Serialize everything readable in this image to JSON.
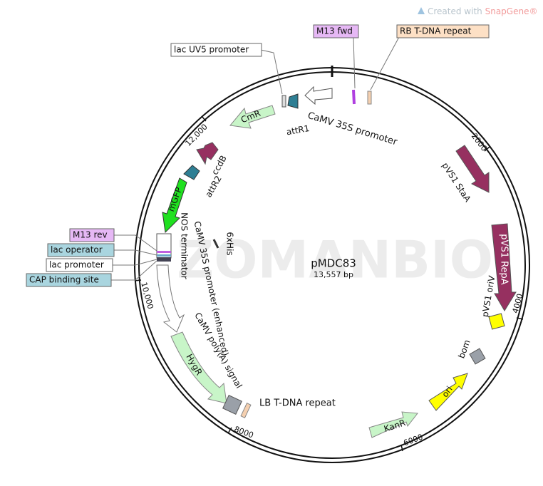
{
  "header": {
    "prefix": "Created with",
    "brand": "SnapGene®"
  },
  "watermark": "ZOMANBIO",
  "plasmid": {
    "name": "pMDC83",
    "size": "13,557 bp"
  },
  "ticks": [
    "2000",
    "4000",
    "6000",
    "8000",
    "10,000",
    "12,000"
  ],
  "features": {
    "m13_fwd": "M13 fwd",
    "rb": "RB T-DNA repeat",
    "lac_uv5": "lac UV5 promoter",
    "camv35s": "CaMV 35S promoter",
    "attr1": "attR1",
    "cmr": "CmR",
    "ccdb": "ccdB",
    "attr2": "attR2",
    "mgfp": "mGFP",
    "his": "6xHis",
    "nos": "NOS terminator",
    "camv35s_enh": "CaMV 35S promoter (enhanced)",
    "polya": "CaMV poly(A) signal",
    "hygr": "HygR",
    "lb": "LB T-DNA repeat",
    "kanr": "KanR",
    "ori": "ori",
    "bom": "bom",
    "orIV": "pVS1 oriV",
    "repa": "pVS1 RepA",
    "staa": "pVS1 StaA",
    "m13_rev": "M13 rev",
    "lac_operator": "lac operator",
    "lac_promoter": "lac promoter",
    "cap": "CAP binding site"
  }
}
